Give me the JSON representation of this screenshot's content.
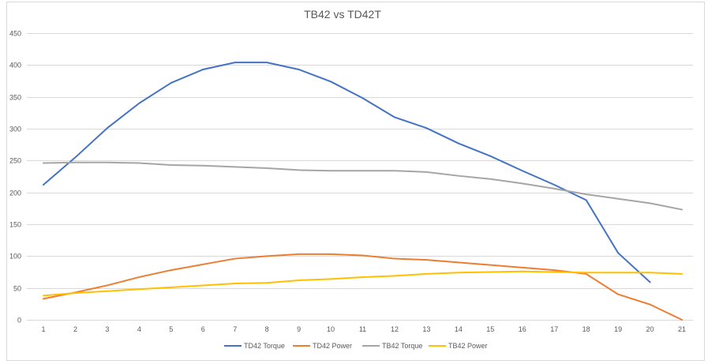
{
  "chart_data": {
    "type": "line",
    "title": "TB42  vs TD42T",
    "xlabel": "",
    "ylabel": "",
    "x": [
      1,
      2,
      3,
      4,
      5,
      6,
      7,
      8,
      9,
      10,
      11,
      12,
      13,
      14,
      15,
      16,
      17,
      18,
      19,
      20,
      21
    ],
    "ylim": [
      0,
      450
    ],
    "yticks": [
      0,
      50,
      100,
      150,
      200,
      250,
      300,
      350,
      400,
      450
    ],
    "grid": true,
    "legend_position": "bottom",
    "series": [
      {
        "name": "TD42 Torque",
        "color": "#4472C4",
        "values": [
          212,
          255,
          301,
          340,
          372,
          393,
          404,
          404,
          393,
          374,
          348,
          318,
          301,
          277,
          257,
          234,
          212,
          188,
          105,
          59,
          null
        ]
      },
      {
        "name": "TD42 Power",
        "color": "#ED7D31",
        "values": [
          33,
          43,
          54,
          67,
          78,
          87,
          96,
          100,
          103,
          103,
          101,
          96,
          94,
          90,
          86,
          82,
          78,
          72,
          40,
          24,
          0
        ]
      },
      {
        "name": "TB42 Torque",
        "color": "#A5A5A5",
        "values": [
          246,
          247,
          247,
          246,
          243,
          242,
          240,
          238,
          235,
          234,
          234,
          234,
          232,
          226,
          221,
          214,
          206,
          197,
          190,
          183,
          173
        ]
      },
      {
        "name": "TB42 Power",
        "color": "#FFC000",
        "values": [
          38,
          42,
          45,
          48,
          51,
          54,
          57,
          58,
          62,
          64,
          67,
          69,
          72,
          74,
          75,
          76,
          75,
          74,
          74,
          74,
          72
        ]
      }
    ]
  }
}
